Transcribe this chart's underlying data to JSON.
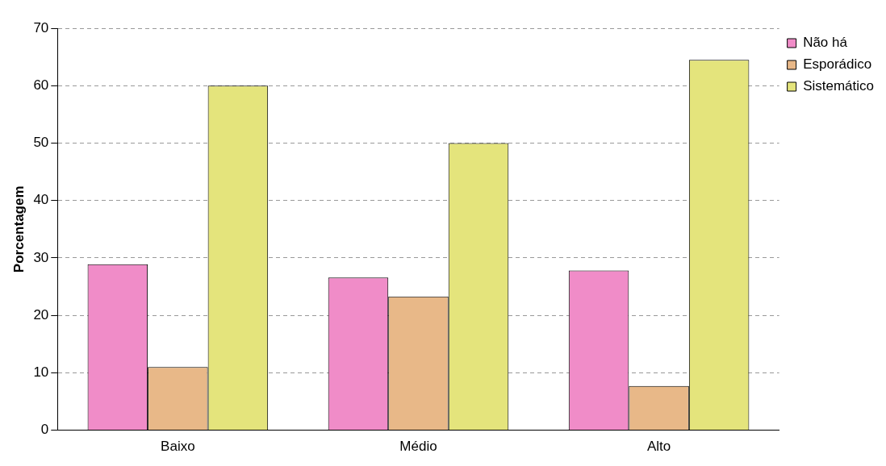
{
  "chart_data": {
    "type": "bar",
    "ylabel": "Porcentagem",
    "categories": [
      "Baixo",
      "Médio",
      "Alto"
    ],
    "series": [
      {
        "name": "Não há",
        "color": "#f08cc8",
        "values": [
          28.9,
          26.6,
          27.8
        ]
      },
      {
        "name": "Esporádico",
        "color": "#e8b888",
        "values": [
          11,
          23.3,
          7.7
        ]
      },
      {
        "name": "Sistemático",
        "color": "#e4e47c",
        "values": [
          60,
          50,
          64.5
        ]
      }
    ],
    "ylim": [
      0,
      70
    ],
    "yticks": [
      0,
      10,
      20,
      30,
      40,
      50,
      60,
      70
    ],
    "grid": "y",
    "legend": "top right"
  }
}
